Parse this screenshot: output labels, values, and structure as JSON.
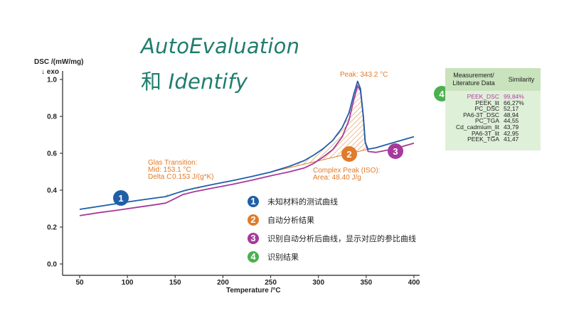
{
  "title": {
    "line1": "AutoEvaluation",
    "line2_prefix": "和 ",
    "line2_italic": "Identify"
  },
  "colors": {
    "title": "#1f7d6e",
    "blue_curve": "#1f5fa8",
    "purple_curve": "#a53a9a",
    "orange": "#e07b2a",
    "green": "#4caf50",
    "table_bg": "#dff0d8",
    "table_header_bg": "#c9e3bd",
    "highlight": "#b23fa6"
  },
  "chart_data": {
    "type": "line",
    "xlabel": "Temperature /°C",
    "ylabel": "DSC /(mW/mg)",
    "exo_label": "↓ exo",
    "xlim": [
      40,
      400
    ],
    "ylim": [
      0.0,
      1.0
    ],
    "xticks": [
      50,
      100,
      150,
      200,
      250,
      300,
      350,
      400
    ],
    "yticks": [
      0.0,
      0.2,
      0.4,
      0.6,
      0.8,
      1.0
    ],
    "grid": false,
    "series": [
      {
        "color": "#1f5fa8",
        "points": [
          [
            50,
            0.296
          ],
          [
            70,
            0.312
          ],
          [
            90,
            0.328
          ],
          [
            110,
            0.344
          ],
          [
            130,
            0.358
          ],
          [
            140,
            0.365
          ],
          [
            150,
            0.382
          ],
          [
            160,
            0.398
          ],
          [
            170,
            0.41
          ],
          [
            190,
            0.432
          ],
          [
            210,
            0.452
          ],
          [
            230,
            0.474
          ],
          [
            250,
            0.498
          ],
          [
            270,
            0.53
          ],
          [
            285,
            0.56
          ],
          [
            295,
            0.59
          ],
          [
            305,
            0.625
          ],
          [
            315,
            0.67
          ],
          [
            325,
            0.74
          ],
          [
            332,
            0.82
          ],
          [
            337,
            0.92
          ],
          [
            341,
            0.99
          ],
          [
            344,
            0.95
          ],
          [
            347,
            0.8
          ],
          [
            349,
            0.66
          ],
          [
            352,
            0.622
          ],
          [
            360,
            0.63
          ],
          [
            380,
            0.66
          ],
          [
            400,
            0.69
          ]
        ]
      },
      {
        "color": "#a53a9a",
        "points": [
          [
            50,
            0.262
          ],
          [
            70,
            0.278
          ],
          [
            90,
            0.292
          ],
          [
            110,
            0.307
          ],
          [
            130,
            0.322
          ],
          [
            140,
            0.33
          ],
          [
            150,
            0.355
          ],
          [
            158,
            0.376
          ],
          [
            170,
            0.392
          ],
          [
            190,
            0.412
          ],
          [
            210,
            0.432
          ],
          [
            230,
            0.454
          ],
          [
            250,
            0.478
          ],
          [
            270,
            0.5
          ],
          [
            285,
            0.52
          ],
          [
            295,
            0.545
          ],
          [
            305,
            0.58
          ],
          [
            315,
            0.62
          ],
          [
            325,
            0.69
          ],
          [
            332,
            0.78
          ],
          [
            337,
            0.89
          ],
          [
            341,
            0.965
          ],
          [
            344,
            0.94
          ],
          [
            347,
            0.8
          ],
          [
            349,
            0.66
          ],
          [
            352,
            0.61
          ],
          [
            360,
            0.605
          ],
          [
            380,
            0.625
          ],
          [
            400,
            0.655
          ]
        ]
      }
    ],
    "annotations": {
      "peak": "Peak: 343.2 °C",
      "glass_line1": "Glas Transition:",
      "glass_line2": "Mid: 153.1 °C",
      "glass_line3": "Delta C 0.153 J/(g*K)",
      "complex_line1": "Complex Peak (ISO):",
      "complex_line2": "Area: 48.40 J/g"
    }
  },
  "badges": {
    "b1": "1",
    "b2": "2",
    "b3": "3",
    "b4": "4"
  },
  "legend": [
    {
      "num": "1",
      "color": "#1f5fa8",
      "text": "未知材料的测试曲线"
    },
    {
      "num": "2",
      "color": "#e07b2a",
      "text": "自动分析结果"
    },
    {
      "num": "3",
      "color": "#a53a9a",
      "text": "识别自动分析后曲线，显示对应的参比曲线"
    },
    {
      "num": "4",
      "color": "#4caf50",
      "text": "识别结果"
    }
  ],
  "table": {
    "header_col1_line1": "Measurement/",
    "header_col1_line2": "Literature Data",
    "header_col2": "Similarity",
    "rows": [
      {
        "name": "PEEK_DSC",
        "value": "99,84%",
        "highlight": true
      },
      {
        "name": "PEEK_lit",
        "value": "66,27%",
        "highlight": false
      },
      {
        "name": "PC_DSC",
        "value": "52,17",
        "highlight": false
      },
      {
        "name": "PA6-3T_DSC",
        "value": "48,94",
        "highlight": false
      },
      {
        "name": "PC_TGA",
        "value": "44,55",
        "highlight": false
      },
      {
        "name": "Cd_cadmium_lit",
        "value": "43,79",
        "highlight": false
      },
      {
        "name": "PA6-3T_lit",
        "value": "42,95",
        "highlight": false
      },
      {
        "name": "PEEK_TGA",
        "value": "41,47",
        "highlight": false
      }
    ]
  }
}
